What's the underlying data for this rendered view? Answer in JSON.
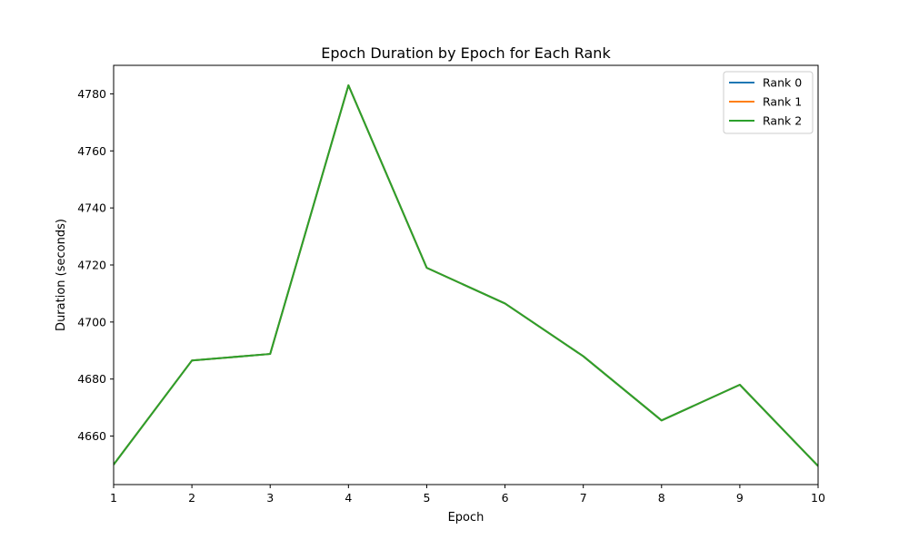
{
  "chart_data": {
    "type": "line",
    "title": "Epoch Duration by Epoch for Each Rank",
    "xlabel": "Epoch",
    "ylabel": "Duration (seconds)",
    "x": [
      1,
      2,
      3,
      4,
      5,
      6,
      7,
      8,
      9,
      10
    ],
    "xlim": [
      1,
      10
    ],
    "ylim": [
      4643,
      4790
    ],
    "xticks": [
      1,
      2,
      3,
      4,
      5,
      6,
      7,
      8,
      9,
      10
    ],
    "yticks": [
      4660,
      4680,
      4700,
      4720,
      4740,
      4760,
      4780
    ],
    "grid": false,
    "legend_position": "top-right",
    "series": [
      {
        "name": "Rank 0",
        "color": "#1f77b4",
        "values": [
          4650,
          4686.5,
          4688.8,
          4783,
          4719,
          4706.5,
          4688,
          4665.5,
          4678,
          4649.5
        ]
      },
      {
        "name": "Rank 1",
        "color": "#ff7f0e",
        "values": [
          4650,
          4686.5,
          4688.8,
          4783,
          4719,
          4706.5,
          4688,
          4665.5,
          4678,
          4649.5
        ]
      },
      {
        "name": "Rank 2",
        "color": "#2ca02c",
        "values": [
          4650,
          4686.5,
          4688.8,
          4783,
          4719,
          4706.5,
          4688,
          4665.5,
          4678,
          4649.5
        ]
      }
    ]
  }
}
